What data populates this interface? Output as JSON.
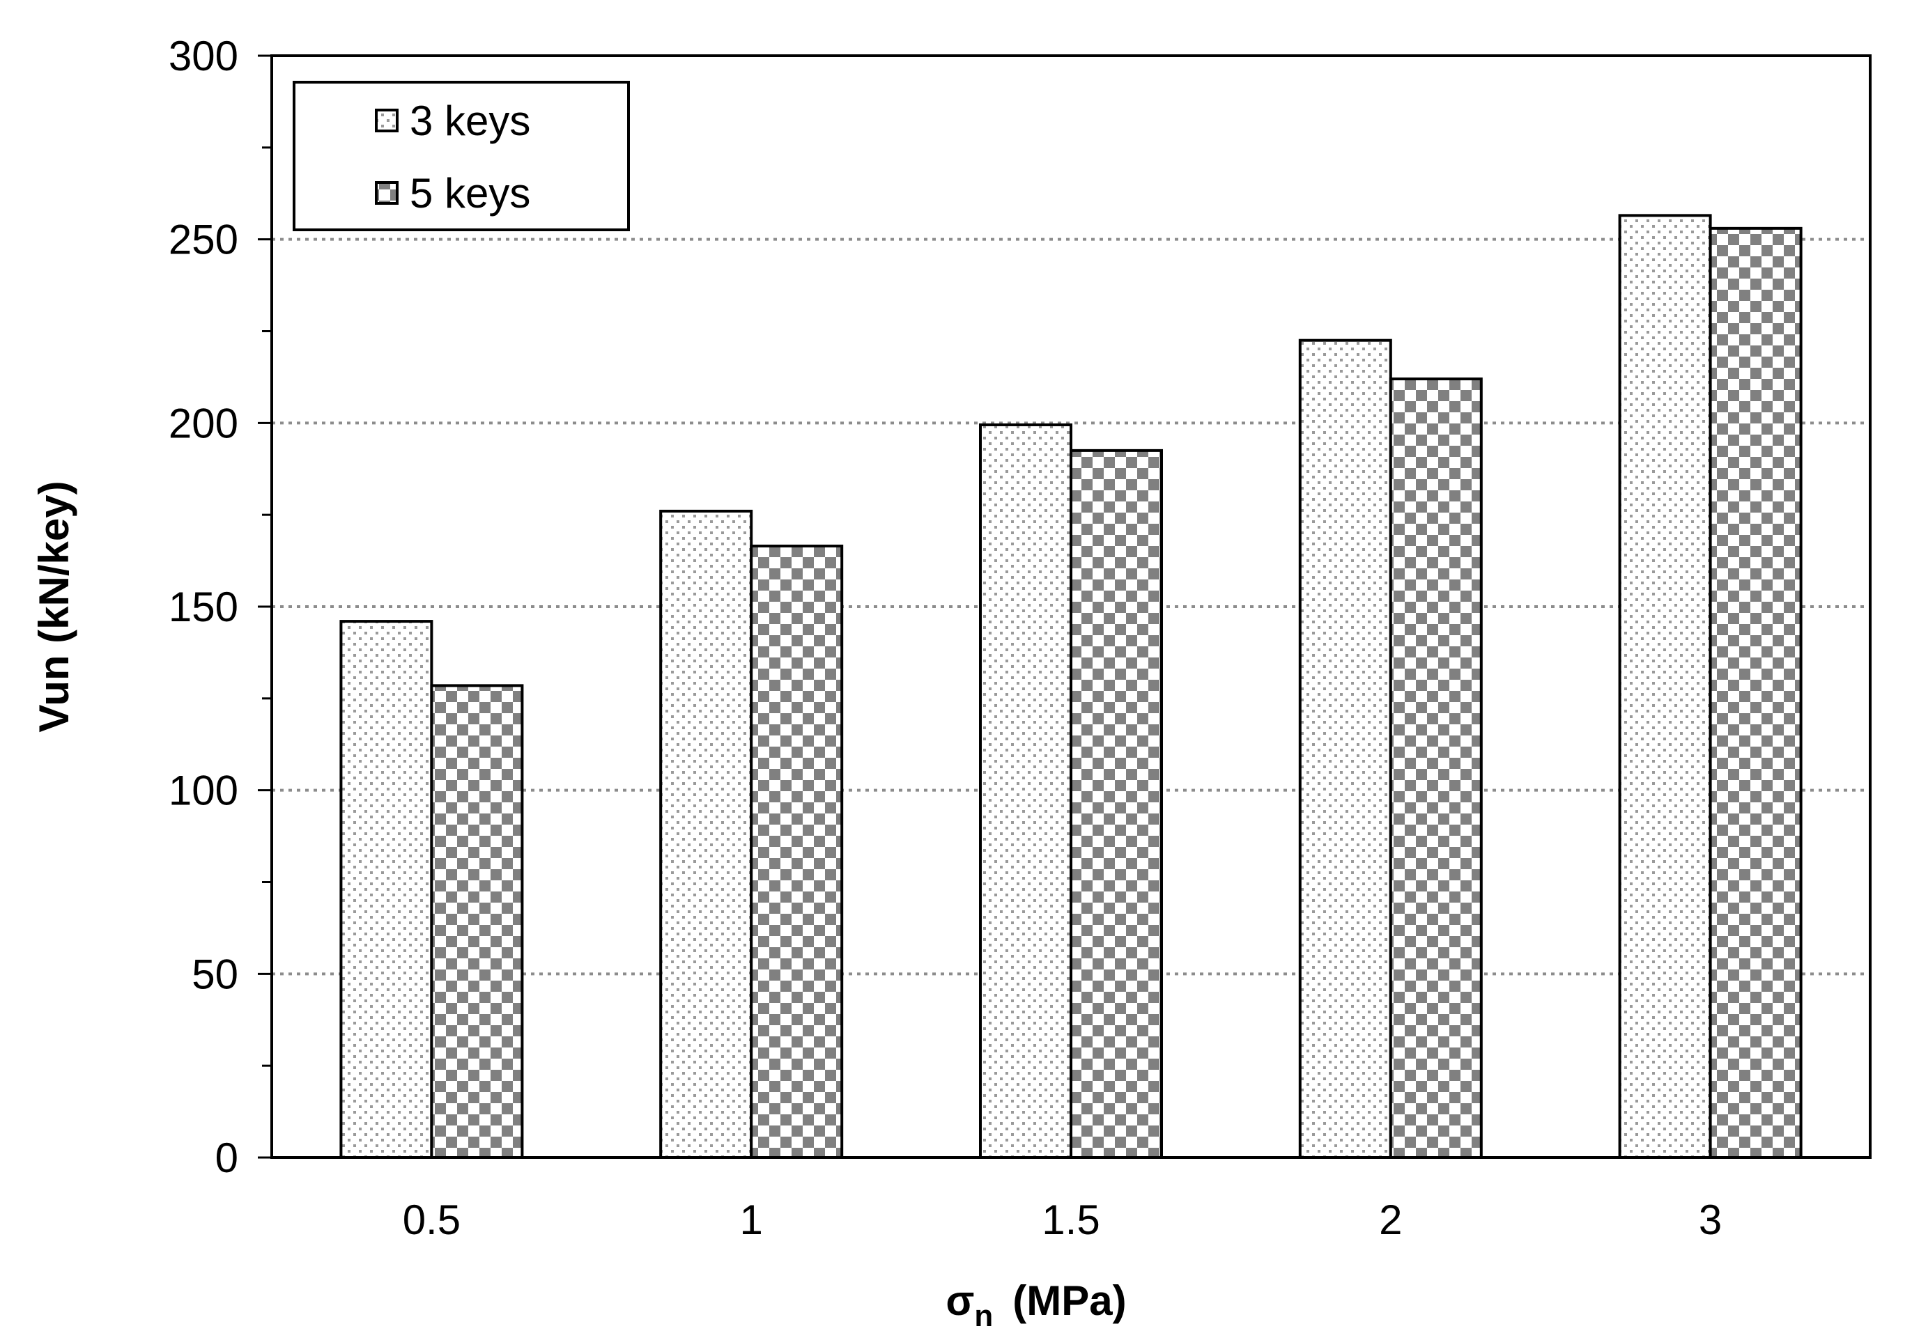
{
  "chart_data": {
    "type": "bar",
    "title": "",
    "xlabel": "σ",
    "xlabel_subscript": "n",
    "xlabel_unit": "(MPa)",
    "ylabel": "Vun (kN/key)",
    "categories": [
      "0.5",
      "1",
      "1.5",
      "2",
      "3"
    ],
    "series": [
      {
        "name": "3 keys",
        "values": [
          146,
          176,
          199.5,
          222.5,
          256.5
        ],
        "pattern": "dots"
      },
      {
        "name": "5 keys",
        "values": [
          128.5,
          166.5,
          192.5,
          212,
          253
        ],
        "pattern": "checker"
      }
    ],
    "ylim": [
      0,
      300
    ],
    "yticks": [
      0,
      50,
      100,
      150,
      200,
      250,
      300
    ],
    "grid": true,
    "legend_position": "top-left"
  },
  "colors": {
    "bar_outline": "#000000",
    "checker_dark": "#808080",
    "dot_color": "#9a9a9a",
    "grid": "#8c8c8c"
  }
}
